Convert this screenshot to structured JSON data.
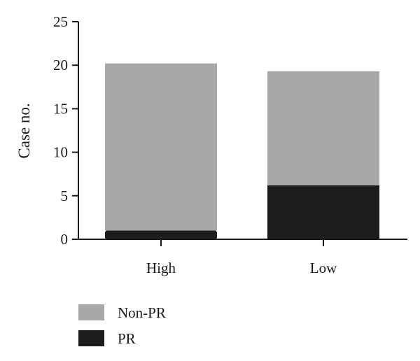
{
  "chart_data": {
    "type": "bar",
    "stacked": true,
    "categories": [
      "High",
      "Low"
    ],
    "series": [
      {
        "name": "PR",
        "values": [
          1,
          6.2
        ],
        "color": "#1c1c1c"
      },
      {
        "name": "Non-PR",
        "values": [
          19.2,
          13.1
        ],
        "color": "#a8a8a8"
      }
    ],
    "xlabel": "",
    "ylabel": "Case no.",
    "ylim": [
      0,
      25
    ],
    "yticks": [
      0,
      5,
      10,
      15,
      20,
      25
    ],
    "grid": false,
    "legend": {
      "position": "bottom-left",
      "entries": [
        "Non-PR",
        "PR"
      ]
    }
  }
}
